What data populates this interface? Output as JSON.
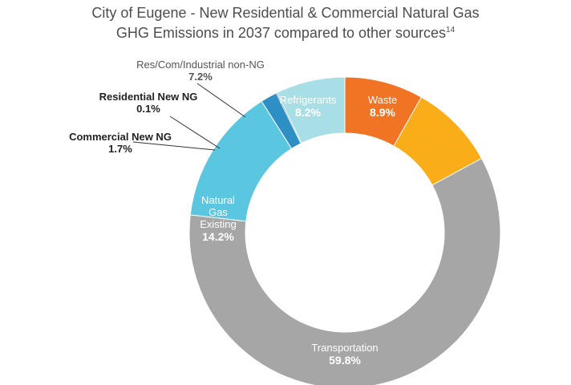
{
  "title_line1": "City of Eugene - New Residential & Commercial Natural Gas",
  "title_line2": "GHG Emissions in 2037 compared to other sources",
  "title_footnote": "14",
  "chart_data": {
    "type": "pie",
    "variant": "donut",
    "title": "City of Eugene - New Residential & Commercial Natural Gas GHG Emissions in 2037 compared to other sources",
    "slices": [
      {
        "id": "refrigerants",
        "label": "Refrigerants",
        "value": 8.2,
        "value_label": "8.2%",
        "color": "#f07423",
        "label_style": "inside"
      },
      {
        "id": "waste",
        "label": "Waste",
        "value": 8.9,
        "value_label": "8.9%",
        "color": "#f9ad18",
        "label_style": "inside"
      },
      {
        "id": "transportation",
        "label": "Transportation",
        "value": 59.8,
        "value_label": "59.8%",
        "color": "#a6a6a6",
        "label_style": "inside"
      },
      {
        "id": "natural-gas-existing",
        "label": "Natural Gas Existing",
        "label_lines": [
          "Natural",
          "Gas",
          "Existing"
        ],
        "value": 14.2,
        "value_label": "14.2%",
        "color": "#5bc6e0",
        "label_style": "inside"
      },
      {
        "id": "commercial-new-ng",
        "label": "Commercial New NG",
        "value": 1.7,
        "value_label": "1.7%",
        "color": "#2e8fc4",
        "label_style": "callout"
      },
      {
        "id": "residential-new-ng",
        "label": "Residential New NG",
        "value": 0.1,
        "value_label": "0.1%",
        "color": "#1a5e8a",
        "label_style": "callout"
      },
      {
        "id": "res-com-industrial-non-ng",
        "label": "Res/Com/Industrial non-NG",
        "value": 7.2,
        "value_label": "7.2%",
        "color": "#a8dfe6",
        "label_style": "callout"
      }
    ]
  }
}
